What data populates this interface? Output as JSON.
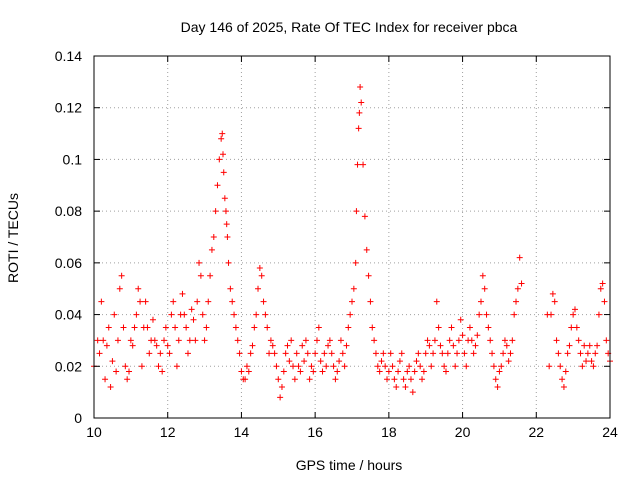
{
  "colors": {
    "points": "#ff0000",
    "grid": "#a0a0a0",
    "axis": "#000000",
    "background": "#ffffff"
  },
  "chart_data": {
    "type": "scatter",
    "title": "Day 146 of 2025, Rate Of TEC Index for receiver pbca",
    "xlabel": "GPS time / hours",
    "ylabel": "ROTI / TECUs",
    "xlim": [
      10,
      24
    ],
    "ylim": [
      0,
      0.14
    ],
    "xticks": [
      10,
      12,
      14,
      16,
      18,
      20,
      22,
      24
    ],
    "xtick_labels": [
      "10",
      "12",
      "14",
      "16",
      "18",
      "20",
      "22",
      "24"
    ],
    "yticks": [
      0,
      0.02,
      0.04,
      0.06,
      0.08,
      0.1,
      0.12,
      0.14
    ],
    "ytick_labels": [
      "0",
      "0.02",
      "0.04",
      "0.06",
      "0.08",
      "0.1",
      "0.12",
      "0.14"
    ],
    "grid": true,
    "marker": "+",
    "series": [
      {
        "name": "ROTI",
        "x": [
          10.0,
          10.1,
          10.15,
          10.2,
          10.25,
          10.3,
          10.35,
          10.4,
          10.45,
          10.5,
          10.55,
          10.6,
          10.65,
          10.7,
          10.75,
          10.8,
          10.85,
          10.9,
          10.95,
          11.0,
          11.05,
          11.1,
          11.15,
          11.2,
          11.25,
          11.3,
          11.35,
          11.4,
          11.45,
          11.5,
          11.55,
          11.6,
          11.65,
          11.7,
          11.75,
          11.8,
          11.85,
          11.9,
          11.95,
          12.0,
          12.05,
          12.1,
          12.15,
          12.2,
          12.25,
          12.3,
          12.35,
          12.4,
          12.45,
          12.5,
          12.55,
          12.6,
          12.65,
          12.7,
          12.75,
          12.8,
          12.85,
          12.9,
          12.95,
          13.0,
          13.05,
          13.1,
          13.15,
          13.2,
          13.25,
          13.3,
          13.35,
          13.4,
          13.45,
          13.48,
          13.5,
          13.52,
          13.55,
          13.58,
          13.6,
          13.62,
          13.65,
          13.7,
          13.75,
          13.8,
          13.85,
          13.9,
          13.95,
          14.0,
          14.05,
          14.1,
          14.15,
          14.2,
          14.25,
          14.3,
          14.35,
          14.4,
          14.45,
          14.5,
          14.55,
          14.6,
          14.65,
          14.7,
          14.75,
          14.8,
          14.85,
          14.9,
          14.95,
          15.0,
          15.05,
          15.1,
          15.15,
          15.2,
          15.25,
          15.3,
          15.35,
          15.4,
          15.45,
          15.5,
          15.55,
          15.6,
          15.65,
          15.7,
          15.75,
          15.8,
          15.85,
          15.9,
          15.95,
          16.0,
          16.05,
          16.1,
          16.15,
          16.2,
          16.25,
          16.3,
          16.35,
          16.4,
          16.45,
          16.5,
          16.55,
          16.6,
          16.65,
          16.7,
          16.75,
          16.8,
          16.85,
          16.9,
          16.95,
          17.0,
          17.05,
          17.1,
          17.12,
          17.15,
          17.18,
          17.2,
          17.22,
          17.25,
          17.3,
          17.35,
          17.4,
          17.45,
          17.5,
          17.55,
          17.6,
          17.65,
          17.7,
          17.75,
          17.8,
          17.85,
          17.9,
          17.95,
          18.0,
          18.05,
          18.1,
          18.15,
          18.2,
          18.25,
          18.3,
          18.35,
          18.4,
          18.45,
          18.5,
          18.55,
          18.6,
          18.65,
          18.7,
          18.75,
          18.8,
          18.85,
          18.9,
          18.95,
          19.0,
          19.05,
          19.1,
          19.15,
          19.2,
          19.25,
          19.3,
          19.35,
          19.4,
          19.45,
          19.5,
          19.55,
          19.6,
          19.65,
          19.7,
          19.75,
          19.8,
          19.85,
          19.9,
          19.95,
          20.0,
          20.05,
          20.1,
          20.15,
          20.2,
          20.25,
          20.3,
          20.35,
          20.4,
          20.45,
          20.5,
          20.55,
          20.6,
          20.65,
          20.7,
          20.75,
          20.8,
          20.85,
          20.9,
          20.95,
          21.0,
          21.05,
          21.1,
          21.15,
          21.2,
          21.25,
          21.3,
          21.35,
          21.4,
          21.45,
          21.5,
          21.55,
          21.6,
          22.3,
          22.35,
          22.4,
          22.45,
          22.5,
          22.55,
          22.6,
          22.65,
          22.7,
          22.75,
          22.8,
          22.85,
          22.9,
          22.95,
          23.0,
          23.05,
          23.1,
          23.15,
          23.2,
          23.25,
          23.3,
          23.35,
          23.4,
          23.45,
          23.5,
          23.55,
          23.6,
          23.65,
          23.7,
          23.75,
          23.8,
          23.85,
          23.9,
          23.95,
          24.0
        ],
        "y": [
          0.02,
          0.03,
          0.025,
          0.045,
          0.03,
          0.015,
          0.028,
          0.035,
          0.012,
          0.022,
          0.04,
          0.018,
          0.03,
          0.05,
          0.055,
          0.035,
          0.02,
          0.015,
          0.018,
          0.03,
          0.028,
          0.035,
          0.04,
          0.05,
          0.045,
          0.02,
          0.035,
          0.045,
          0.035,
          0.025,
          0.03,
          0.038,
          0.03,
          0.028,
          0.02,
          0.025,
          0.018,
          0.03,
          0.035,
          0.028,
          0.025,
          0.04,
          0.045,
          0.035,
          0.02,
          0.03,
          0.04,
          0.048,
          0.04,
          0.035,
          0.025,
          0.03,
          0.042,
          0.038,
          0.03,
          0.045,
          0.06,
          0.055,
          0.04,
          0.03,
          0.035,
          0.045,
          0.055,
          0.065,
          0.07,
          0.08,
          0.09,
          0.1,
          0.108,
          0.11,
          0.102,
          0.095,
          0.085,
          0.08,
          0.075,
          0.07,
          0.06,
          0.05,
          0.045,
          0.04,
          0.035,
          0.03,
          0.025,
          0.018,
          0.015,
          0.015,
          0.02,
          0.018,
          0.025,
          0.028,
          0.035,
          0.04,
          0.05,
          0.058,
          0.055,
          0.045,
          0.04,
          0.035,
          0.025,
          0.03,
          0.028,
          0.025,
          0.02,
          0.015,
          0.008,
          0.012,
          0.018,
          0.025,
          0.028,
          0.022,
          0.03,
          0.02,
          0.015,
          0.025,
          0.02,
          0.018,
          0.028,
          0.022,
          0.03,
          0.025,
          0.015,
          0.02,
          0.018,
          0.025,
          0.03,
          0.035,
          0.022,
          0.018,
          0.025,
          0.02,
          0.028,
          0.03,
          0.025,
          0.02,
          0.015,
          0.018,
          0.022,
          0.03,
          0.025,
          0.02,
          0.028,
          0.035,
          0.04,
          0.045,
          0.05,
          0.06,
          0.08,
          0.098,
          0.112,
          0.118,
          0.128,
          0.122,
          0.098,
          0.078,
          0.065,
          0.055,
          0.045,
          0.035,
          0.03,
          0.025,
          0.02,
          0.018,
          0.022,
          0.025,
          0.02,
          0.015,
          0.018,
          0.025,
          0.02,
          0.015,
          0.012,
          0.018,
          0.022,
          0.025,
          0.015,
          0.012,
          0.018,
          0.02,
          0.015,
          0.01,
          0.018,
          0.022,
          0.025,
          0.02,
          0.015,
          0.018,
          0.025,
          0.03,
          0.028,
          0.02,
          0.025,
          0.03,
          0.045,
          0.035,
          0.028,
          0.025,
          0.02,
          0.018,
          0.025,
          0.03,
          0.035,
          0.028,
          0.02,
          0.025,
          0.03,
          0.038,
          0.032,
          0.025,
          0.02,
          0.03,
          0.035,
          0.03,
          0.025,
          0.028,
          0.032,
          0.04,
          0.045,
          0.055,
          0.05,
          0.04,
          0.035,
          0.03,
          0.025,
          0.02,
          0.015,
          0.012,
          0.018,
          0.02,
          0.025,
          0.03,
          0.028,
          0.022,
          0.025,
          0.03,
          0.04,
          0.045,
          0.05,
          0.062,
          0.052,
          0.04,
          0.02,
          0.04,
          0.048,
          0.045,
          0.03,
          0.025,
          0.02,
          0.015,
          0.012,
          0.018,
          0.025,
          0.028,
          0.035,
          0.04,
          0.042,
          0.035,
          0.03,
          0.025,
          0.02,
          0.028,
          0.022,
          0.025,
          0.028,
          0.022,
          0.02,
          0.025,
          0.028,
          0.04,
          0.05,
          0.052,
          0.045,
          0.03,
          0.025,
          0.022
        ]
      }
    ]
  }
}
